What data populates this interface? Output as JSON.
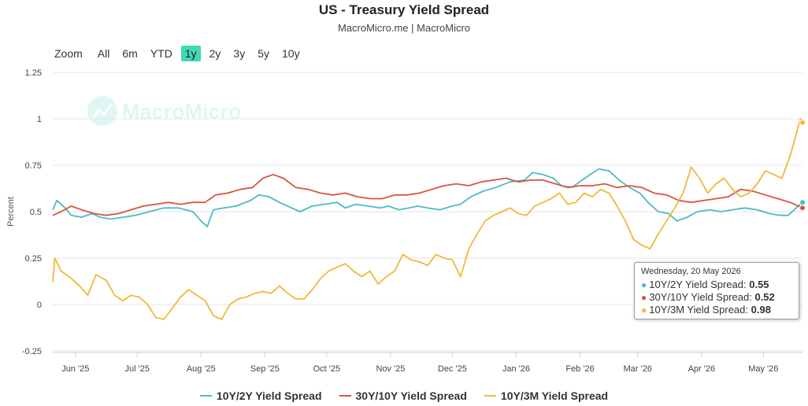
{
  "title": "US - Treasury Yield Spread",
  "subtitle": "MacroMicro.me | MacroMicro",
  "watermark": "MacroMicro",
  "zoom": {
    "label": "Zoom",
    "buttons": [
      "All",
      "6m",
      "YTD",
      "1y",
      "2y",
      "3y",
      "5y",
      "10y"
    ],
    "active": "1y"
  },
  "chart_data": {
    "type": "line",
    "ylabel": "Percent",
    "ylim": [
      -0.25,
      1.25
    ],
    "yticks": [
      "1.25",
      "1",
      "0.75",
      "0.5",
      "0.25",
      "0",
      "-0.25"
    ],
    "xlim": [
      "2025-05-21",
      "2026-05-20"
    ],
    "xticks": [
      {
        "label": "Jun '25",
        "date": "2025-06-01"
      },
      {
        "label": "Jul '25",
        "date": "2025-07-01"
      },
      {
        "label": "Aug '25",
        "date": "2025-08-01"
      },
      {
        "label": "Sep '25",
        "date": "2025-09-01"
      },
      {
        "label": "Oct '25",
        "date": "2025-10-01"
      },
      {
        "label": "Nov '25",
        "date": "2025-11-01"
      },
      {
        "label": "Dec '25",
        "date": "2025-12-01"
      },
      {
        "label": "Jan '26",
        "date": "2026-01-01"
      },
      {
        "label": "Feb '26",
        "date": "2026-02-01"
      },
      {
        "label": "Mar '26",
        "date": "2026-03-01"
      },
      {
        "label": "Apr '26",
        "date": "2026-04-01"
      },
      {
        "label": "May '26",
        "date": "2026-05-01"
      }
    ],
    "grid": true,
    "legend_position": "bottom",
    "series": [
      {
        "name": "10Y/2Y Yield Spread",
        "color": "#4bbbc8",
        "points": [
          [
            "2025-05-21",
            0.51
          ],
          [
            "2025-05-23",
            0.56
          ],
          [
            "2025-05-27",
            0.52
          ],
          [
            "2025-05-30",
            0.48
          ],
          [
            "2025-06-04",
            0.47
          ],
          [
            "2025-06-09",
            0.49
          ],
          [
            "2025-06-13",
            0.47
          ],
          [
            "2025-06-18",
            0.46
          ],
          [
            "2025-06-24",
            0.47
          ],
          [
            "2025-06-30",
            0.48
          ],
          [
            "2025-07-07",
            0.5
          ],
          [
            "2025-07-14",
            0.52
          ],
          [
            "2025-07-21",
            0.52
          ],
          [
            "2025-07-28",
            0.5
          ],
          [
            "2025-08-01",
            0.45
          ],
          [
            "2025-08-04",
            0.42
          ],
          [
            "2025-08-07",
            0.51
          ],
          [
            "2025-08-12",
            0.52
          ],
          [
            "2025-08-18",
            0.53
          ],
          [
            "2025-08-25",
            0.56
          ],
          [
            "2025-08-29",
            0.59
          ],
          [
            "2025-09-03",
            0.58
          ],
          [
            "2025-09-08",
            0.55
          ],
          [
            "2025-09-12",
            0.53
          ],
          [
            "2025-09-18",
            0.5
          ],
          [
            "2025-09-24",
            0.53
          ],
          [
            "2025-09-30",
            0.54
          ],
          [
            "2025-10-06",
            0.55
          ],
          [
            "2025-10-10",
            0.52
          ],
          [
            "2025-10-15",
            0.54
          ],
          [
            "2025-10-21",
            0.53
          ],
          [
            "2025-10-27",
            0.52
          ],
          [
            "2025-10-31",
            0.53
          ],
          [
            "2025-11-05",
            0.51
          ],
          [
            "2025-11-10",
            0.52
          ],
          [
            "2025-11-14",
            0.53
          ],
          [
            "2025-11-19",
            0.52
          ],
          [
            "2025-11-25",
            0.51
          ],
          [
            "2025-12-01",
            0.53
          ],
          [
            "2025-12-05",
            0.54
          ],
          [
            "2025-12-10",
            0.58
          ],
          [
            "2025-12-16",
            0.61
          ],
          [
            "2025-12-22",
            0.63
          ],
          [
            "2025-12-29",
            0.66
          ],
          [
            "2026-01-05",
            0.67
          ],
          [
            "2026-01-09",
            0.71
          ],
          [
            "2026-01-14",
            0.7
          ],
          [
            "2026-01-19",
            0.68
          ],
          [
            "2026-01-23",
            0.64
          ],
          [
            "2026-01-28",
            0.63
          ],
          [
            "2026-02-02",
            0.67
          ],
          [
            "2026-02-06",
            0.7
          ],
          [
            "2026-02-10",
            0.73
          ],
          [
            "2026-02-15",
            0.72
          ],
          [
            "2026-02-20",
            0.67
          ],
          [
            "2026-02-25",
            0.63
          ],
          [
            "2026-03-02",
            0.6
          ],
          [
            "2026-03-06",
            0.55
          ],
          [
            "2026-03-11",
            0.5
          ],
          [
            "2026-03-16",
            0.49
          ],
          [
            "2026-03-20",
            0.45
          ],
          [
            "2026-03-25",
            0.47
          ],
          [
            "2026-03-30",
            0.5
          ],
          [
            "2026-04-05",
            0.51
          ],
          [
            "2026-04-10",
            0.5
          ],
          [
            "2026-04-16",
            0.51
          ],
          [
            "2026-04-22",
            0.52
          ],
          [
            "2026-04-28",
            0.51
          ],
          [
            "2026-05-04",
            0.49
          ],
          [
            "2026-05-09",
            0.48
          ],
          [
            "2026-05-13",
            0.48
          ],
          [
            "2026-05-16",
            0.51
          ],
          [
            "2026-05-18",
            0.53
          ],
          [
            "2026-05-20",
            0.55
          ]
        ]
      },
      {
        "name": "30Y/10Y Yield Spread",
        "color": "#d8553f",
        "points": [
          [
            "2025-05-21",
            0.48
          ],
          [
            "2025-05-25",
            0.5
          ],
          [
            "2025-05-30",
            0.53
          ],
          [
            "2025-06-04",
            0.51
          ],
          [
            "2025-06-10",
            0.49
          ],
          [
            "2025-06-16",
            0.48
          ],
          [
            "2025-06-22",
            0.49
          ],
          [
            "2025-06-28",
            0.51
          ],
          [
            "2025-07-04",
            0.53
          ],
          [
            "2025-07-10",
            0.54
          ],
          [
            "2025-07-16",
            0.55
          ],
          [
            "2025-07-22",
            0.54
          ],
          [
            "2025-07-28",
            0.55
          ],
          [
            "2025-08-03",
            0.55
          ],
          [
            "2025-08-08",
            0.59
          ],
          [
            "2025-08-14",
            0.6
          ],
          [
            "2025-08-20",
            0.62
          ],
          [
            "2025-08-26",
            0.63
          ],
          [
            "2025-08-31",
            0.68
          ],
          [
            "2025-09-05",
            0.7
          ],
          [
            "2025-09-10",
            0.68
          ],
          [
            "2025-09-16",
            0.63
          ],
          [
            "2025-09-22",
            0.62
          ],
          [
            "2025-09-28",
            0.6
          ],
          [
            "2025-10-04",
            0.59
          ],
          [
            "2025-10-10",
            0.6
          ],
          [
            "2025-10-16",
            0.58
          ],
          [
            "2025-10-22",
            0.57
          ],
          [
            "2025-10-28",
            0.57
          ],
          [
            "2025-11-03",
            0.59
          ],
          [
            "2025-11-09",
            0.59
          ],
          [
            "2025-11-15",
            0.6
          ],
          [
            "2025-11-21",
            0.62
          ],
          [
            "2025-11-27",
            0.64
          ],
          [
            "2025-12-03",
            0.65
          ],
          [
            "2025-12-09",
            0.64
          ],
          [
            "2025-12-15",
            0.66
          ],
          [
            "2025-12-21",
            0.67
          ],
          [
            "2025-12-27",
            0.68
          ],
          [
            "2026-01-02",
            0.66
          ],
          [
            "2026-01-08",
            0.67
          ],
          [
            "2026-01-14",
            0.67
          ],
          [
            "2026-01-20",
            0.65
          ],
          [
            "2026-01-26",
            0.63
          ],
          [
            "2026-02-01",
            0.64
          ],
          [
            "2026-02-07",
            0.64
          ],
          [
            "2026-02-13",
            0.65
          ],
          [
            "2026-02-19",
            0.63
          ],
          [
            "2026-02-25",
            0.64
          ],
          [
            "2026-03-03",
            0.63
          ],
          [
            "2026-03-09",
            0.6
          ],
          [
            "2026-03-15",
            0.59
          ],
          [
            "2026-03-21",
            0.56
          ],
          [
            "2026-03-27",
            0.55
          ],
          [
            "2026-04-02",
            0.56
          ],
          [
            "2026-04-08",
            0.57
          ],
          [
            "2026-04-14",
            0.58
          ],
          [
            "2026-04-20",
            0.62
          ],
          [
            "2026-04-26",
            0.61
          ],
          [
            "2026-05-02",
            0.59
          ],
          [
            "2026-05-08",
            0.57
          ],
          [
            "2026-05-14",
            0.55
          ],
          [
            "2026-05-20",
            0.52
          ]
        ]
      },
      {
        "name": "10Y/3M Yield Spread",
        "color": "#f3b73a",
        "points": [
          [
            "2025-05-21",
            0.12
          ],
          [
            "2025-05-22",
            0.25
          ],
          [
            "2025-05-25",
            0.18
          ],
          [
            "2025-05-29",
            0.15
          ],
          [
            "2025-06-03",
            0.1
          ],
          [
            "2025-06-07",
            0.05
          ],
          [
            "2025-06-11",
            0.16
          ],
          [
            "2025-06-16",
            0.13
          ],
          [
            "2025-06-20",
            0.05
          ],
          [
            "2025-06-24",
            0.02
          ],
          [
            "2025-06-28",
            0.05
          ],
          [
            "2025-07-02",
            0.04
          ],
          [
            "2025-07-06",
            0.0
          ],
          [
            "2025-07-10",
            -0.07
          ],
          [
            "2025-07-14",
            -0.08
          ],
          [
            "2025-07-18",
            -0.02
          ],
          [
            "2025-07-22",
            0.04
          ],
          [
            "2025-07-26",
            0.08
          ],
          [
            "2025-07-30",
            0.05
          ],
          [
            "2025-08-03",
            0.02
          ],
          [
            "2025-08-07",
            -0.06
          ],
          [
            "2025-08-11",
            -0.08
          ],
          [
            "2025-08-15",
            0.0
          ],
          [
            "2025-08-19",
            0.03
          ],
          [
            "2025-08-23",
            0.04
          ],
          [
            "2025-08-27",
            0.06
          ],
          [
            "2025-08-31",
            0.07
          ],
          [
            "2025-09-04",
            0.06
          ],
          [
            "2025-09-08",
            0.1
          ],
          [
            "2025-09-12",
            0.06
          ],
          [
            "2025-09-16",
            0.03
          ],
          [
            "2025-09-20",
            0.03
          ],
          [
            "2025-09-24",
            0.08
          ],
          [
            "2025-09-28",
            0.14
          ],
          [
            "2025-10-02",
            0.18
          ],
          [
            "2025-10-06",
            0.2
          ],
          [
            "2025-10-10",
            0.22
          ],
          [
            "2025-10-14",
            0.18
          ],
          [
            "2025-10-18",
            0.15
          ],
          [
            "2025-10-22",
            0.18
          ],
          [
            "2025-10-26",
            0.11
          ],
          [
            "2025-10-30",
            0.15
          ],
          [
            "2025-11-03",
            0.18
          ],
          [
            "2025-11-07",
            0.27
          ],
          [
            "2025-11-11",
            0.24
          ],
          [
            "2025-11-15",
            0.23
          ],
          [
            "2025-11-19",
            0.21
          ],
          [
            "2025-11-23",
            0.27
          ],
          [
            "2025-11-27",
            0.25
          ],
          [
            "2025-12-01",
            0.24
          ],
          [
            "2025-12-05",
            0.15
          ],
          [
            "2025-12-09",
            0.3
          ],
          [
            "2025-12-13",
            0.38
          ],
          [
            "2025-12-17",
            0.45
          ],
          [
            "2025-12-21",
            0.48
          ],
          [
            "2025-12-25",
            0.5
          ],
          [
            "2025-12-29",
            0.52
          ],
          [
            "2026-01-02",
            0.49
          ],
          [
            "2026-01-06",
            0.48
          ],
          [
            "2026-01-10",
            0.53
          ],
          [
            "2026-01-14",
            0.55
          ],
          [
            "2026-01-18",
            0.57
          ],
          [
            "2026-01-22",
            0.6
          ],
          [
            "2026-01-26",
            0.54
          ],
          [
            "2026-01-30",
            0.55
          ],
          [
            "2026-02-03",
            0.6
          ],
          [
            "2026-02-07",
            0.58
          ],
          [
            "2026-02-11",
            0.62
          ],
          [
            "2026-02-15",
            0.6
          ],
          [
            "2026-02-19",
            0.53
          ],
          [
            "2026-02-23",
            0.45
          ],
          [
            "2026-02-27",
            0.35
          ],
          [
            "2026-03-03",
            0.32
          ],
          [
            "2026-03-07",
            0.3
          ],
          [
            "2026-03-11",
            0.38
          ],
          [
            "2026-03-15",
            0.45
          ],
          [
            "2026-03-19",
            0.52
          ],
          [
            "2026-03-23",
            0.6
          ],
          [
            "2026-03-27",
            0.74
          ],
          [
            "2026-03-31",
            0.68
          ],
          [
            "2026-04-04",
            0.6
          ],
          [
            "2026-04-08",
            0.65
          ],
          [
            "2026-04-12",
            0.68
          ],
          [
            "2026-04-16",
            0.62
          ],
          [
            "2026-04-20",
            0.58
          ],
          [
            "2026-04-24",
            0.6
          ],
          [
            "2026-04-28",
            0.65
          ],
          [
            "2026-05-02",
            0.72
          ],
          [
            "2026-05-06",
            0.7
          ],
          [
            "2026-05-10",
            0.68
          ],
          [
            "2026-05-14",
            0.8
          ],
          [
            "2026-05-17",
            0.92
          ],
          [
            "2026-05-19",
            1.0
          ],
          [
            "2026-05-20",
            0.98
          ]
        ]
      }
    ]
  },
  "tooltip": {
    "date": "Wednesday, 20 May 2026",
    "rows": [
      {
        "label": "10Y/2Y Yield Spread:",
        "value": "0.55",
        "color": "#4bbbc8"
      },
      {
        "label": "30Y/10Y Yield Spread:",
        "value": "0.52",
        "color": "#d8553f"
      },
      {
        "label": "10Y/3M Yield Spread:",
        "value": "0.98",
        "color": "#f3b73a"
      }
    ]
  }
}
